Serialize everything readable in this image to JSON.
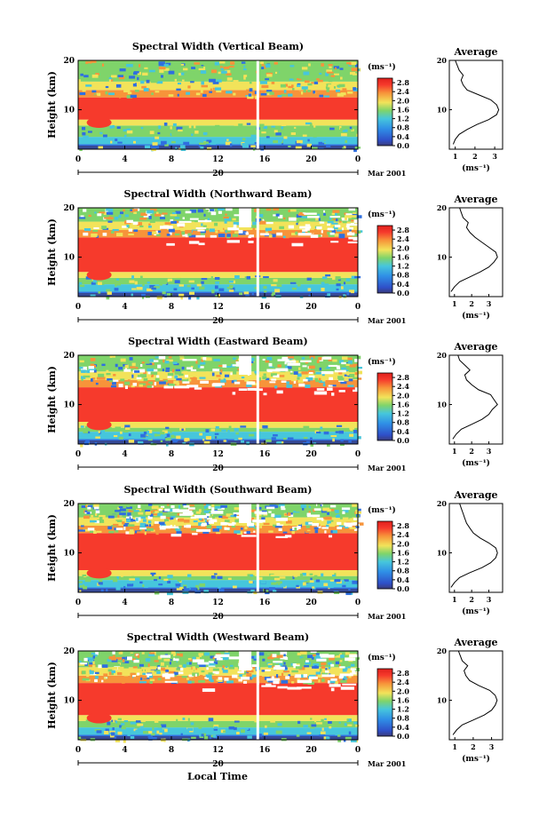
{
  "figure": {
    "xlabel": "Local Time",
    "date_main": "20",
    "date_side": "Mar 2001",
    "colorbar_unit": "(ms⁻¹)",
    "colorbar_ticks": [
      "2.8",
      "2.4",
      "2.0",
      "1.6",
      "1.2",
      "0.8",
      "0.4",
      "0.0"
    ],
    "average_title": "Average",
    "average_unit": "(ms⁻¹)",
    "ylabel": "Height (km)",
    "colors": {
      "red": "#f63a2c",
      "orange": "#f7943a",
      "yellow": "#f2e35a",
      "green": "#7fd46a",
      "cyan": "#46c6dc",
      "blue": "#2f6fe0",
      "navy": "#3a3a78"
    }
  },
  "chart_data": [
    {
      "type": "heatmap",
      "title": "Spectral Width (Vertical Beam)",
      "x_ticks": [
        "0",
        "4",
        "8",
        "12",
        "16",
        "20",
        "0"
      ],
      "y_ticks": [
        "20",
        "10"
      ],
      "xlim": [
        0,
        24
      ],
      "ylim": [
        2,
        20
      ],
      "colorbar_range": [
        0.0,
        3.0
      ],
      "red_band_km": [
        8.0,
        12.5
      ],
      "data_gap_hours": [
        15.3,
        15.5
      ],
      "average_profile": {
        "x_ticks": [
          "1",
          "2",
          "3"
        ],
        "xlim": [
          0.7,
          3.4
        ],
        "y_ticks": [
          "20",
          "10"
        ],
        "height_km": [
          3,
          4,
          5,
          6,
          7,
          8,
          9,
          10,
          11,
          12,
          13,
          14,
          15,
          16,
          17,
          18,
          19,
          20
        ],
        "width_ms": [
          0.9,
          1.0,
          1.2,
          1.6,
          2.1,
          2.7,
          3.1,
          3.2,
          3.1,
          2.8,
          2.2,
          1.6,
          1.4,
          1.3,
          1.4,
          1.2,
          1.1,
          1.0
        ]
      }
    },
    {
      "type": "heatmap",
      "title": "Spectral Width (Northward Beam)",
      "x_ticks": [
        "0",
        "4",
        "8",
        "12",
        "16",
        "20",
        "0"
      ],
      "y_ticks": [
        "20",
        "10"
      ],
      "xlim": [
        0,
        24
      ],
      "ylim": [
        2,
        20
      ],
      "colorbar_range": [
        0.0,
        3.0
      ],
      "red_band_km": [
        7.0,
        14.0
      ],
      "data_gap_hours": [
        15.3,
        15.5
      ],
      "average_profile": {
        "x_ticks": [
          "1",
          "2",
          "3"
        ],
        "xlim": [
          0.7,
          3.8
        ],
        "y_ticks": [
          "20",
          "10"
        ],
        "height_km": [
          3,
          4,
          5,
          6,
          7,
          8,
          9,
          10,
          11,
          12,
          13,
          14,
          15,
          16,
          17,
          18,
          19,
          20
        ],
        "width_ms": [
          0.8,
          1.0,
          1.3,
          1.9,
          2.5,
          3.0,
          3.3,
          3.5,
          3.4,
          3.0,
          2.6,
          2.2,
          1.9,
          1.7,
          1.8,
          1.5,
          1.4,
          1.3
        ]
      }
    },
    {
      "type": "heatmap",
      "title": "Spectral Width (Eastward Beam)",
      "x_ticks": [
        "0",
        "4",
        "8",
        "12",
        "16",
        "20",
        "0"
      ],
      "y_ticks": [
        "20",
        "10"
      ],
      "xlim": [
        0,
        24
      ],
      "ylim": [
        2,
        20
      ],
      "colorbar_range": [
        0.0,
        3.0
      ],
      "red_band_km": [
        6.5,
        13.5
      ],
      "data_gap_hours": [
        15.3,
        15.5
      ],
      "average_profile": {
        "x_ticks": [
          "1",
          "2",
          "3"
        ],
        "xlim": [
          0.7,
          3.8
        ],
        "y_ticks": [
          "20",
          "10"
        ],
        "height_km": [
          3,
          4,
          5,
          6,
          7,
          8,
          9,
          10,
          11,
          12,
          13,
          14,
          15,
          16,
          17,
          18,
          19,
          20
        ],
        "width_ms": [
          0.9,
          1.1,
          1.4,
          2.0,
          2.6,
          3.0,
          3.2,
          3.5,
          3.3,
          3.1,
          2.4,
          2.0,
          1.7,
          1.6,
          1.9,
          1.6,
          1.3,
          1.2
        ]
      }
    },
    {
      "type": "heatmap",
      "title": "Spectral Width (Southward Beam)",
      "x_ticks": [
        "0",
        "4",
        "8",
        "12",
        "16",
        "20",
        "0"
      ],
      "y_ticks": [
        "20",
        "10"
      ],
      "xlim": [
        0,
        24
      ],
      "ylim": [
        2,
        20
      ],
      "colorbar_range": [
        0.0,
        3.0
      ],
      "red_band_km": [
        6.5,
        14.0
      ],
      "data_gap_hours": [
        15.3,
        15.5
      ],
      "average_profile": {
        "x_ticks": [
          "1",
          "2",
          "3"
        ],
        "xlim": [
          0.7,
          3.8
        ],
        "y_ticks": [
          "20",
          "10"
        ],
        "height_km": [
          3,
          4,
          5,
          6,
          7,
          8,
          9,
          10,
          11,
          12,
          13,
          14,
          15,
          16,
          17,
          18,
          19,
          20
        ],
        "width_ms": [
          0.8,
          1.0,
          1.3,
          1.9,
          2.6,
          3.1,
          3.4,
          3.5,
          3.4,
          3.0,
          2.5,
          2.1,
          1.9,
          1.7,
          1.6,
          1.5,
          1.4,
          1.3
        ]
      }
    },
    {
      "type": "heatmap",
      "title": "Spectral Width (Westward Beam)",
      "x_ticks": [
        "0",
        "4",
        "8",
        "12",
        "16",
        "20",
        "0"
      ],
      "y_ticks": [
        "20",
        "10"
      ],
      "xlim": [
        0,
        24
      ],
      "ylim": [
        2,
        20
      ],
      "colorbar_range": [
        0.0,
        3.0
      ],
      "red_band_km": [
        7.0,
        13.5
      ],
      "data_gap_hours": [
        15.3,
        15.5
      ],
      "average_profile": {
        "x_ticks": [
          "1",
          "2",
          "3"
        ],
        "xlim": [
          0.7,
          3.6
        ],
        "y_ticks": [
          "20",
          "10"
        ],
        "height_km": [
          3,
          4,
          5,
          6,
          7,
          8,
          9,
          10,
          11,
          12,
          13,
          14,
          15,
          16,
          17,
          18,
          19,
          20
        ],
        "width_ms": [
          0.9,
          1.1,
          1.4,
          2.0,
          2.6,
          3.0,
          3.2,
          3.3,
          3.2,
          2.9,
          2.3,
          1.8,
          1.6,
          1.5,
          1.7,
          1.4,
          1.3,
          1.2
        ]
      }
    }
  ]
}
